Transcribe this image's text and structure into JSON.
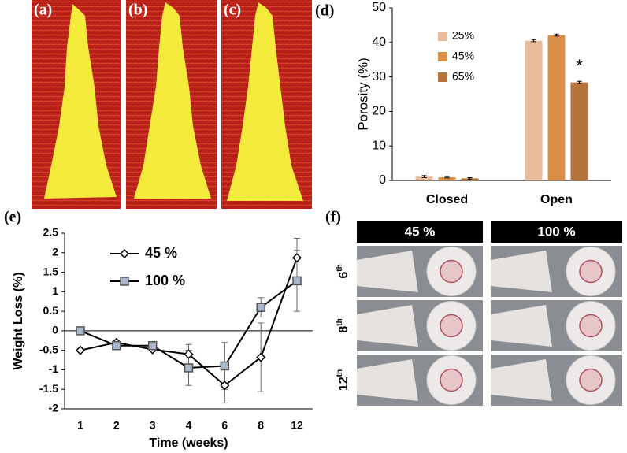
{
  "image_panels": {
    "labels": [
      "(a)",
      "(b)",
      "(c)"
    ]
  },
  "chart_data": [
    {
      "type": "bar",
      "panel_label": "(d)",
      "ylabel": "Porosity (%)",
      "categories": [
        "Closed",
        "Open"
      ],
      "series": [
        {
          "name": "25%",
          "color": "#e9bd9c",
          "values": [
            1.1,
            40.5
          ],
          "errors": [
            0.3,
            0.3
          ]
        },
        {
          "name": "45%",
          "color": "#d98f48",
          "values": [
            0.9,
            42.1
          ],
          "errors": [
            0.2,
            0.3
          ]
        },
        {
          "name": "65%",
          "color": "#b5743c",
          "values": [
            0.6,
            28.4
          ],
          "errors": [
            0.2,
            0.3
          ]
        }
      ],
      "annotation": "*",
      "ylim": [
        0,
        50
      ],
      "yticks": [
        0,
        10,
        20,
        30,
        40,
        50
      ],
      "legend": "upper-center"
    },
    {
      "type": "line",
      "panel_label": "(e)",
      "ylabel": "Weight Loss (%)",
      "xlabel": "Time (weeks)",
      "categories": [
        "1",
        "2",
        "3",
        "4",
        "6",
        "8",
        "12"
      ],
      "series": [
        {
          "name": "45 %",
          "color": "#000000",
          "marker": "diamond",
          "marker_color": "#ffffff",
          "values": [
            -0.5,
            -0.3,
            -0.48,
            -0.6,
            -1.4,
            -0.68,
            1.87
          ],
          "errors": [
            0,
            0,
            0,
            0.25,
            0.45,
            0.88,
            0.5
          ]
        },
        {
          "name": "100 %",
          "color": "#000000",
          "marker": "square",
          "marker_color": "#aab6ca",
          "values": [
            0,
            -0.38,
            -0.38,
            -0.95,
            -0.9,
            0.6,
            1.28
          ],
          "errors": [
            0,
            0,
            0,
            0.45,
            0.6,
            0.25,
            0.78
          ]
        }
      ],
      "ylim": [
        -2,
        2.5
      ],
      "yticks": [
        -2,
        -1.5,
        -1,
        -0.5,
        0,
        0.5,
        1,
        1.5,
        2,
        2.5
      ],
      "zero_line": true,
      "legend": "upper-left"
    }
  ],
  "photo_panel": {
    "label": "(f)",
    "columns": [
      "45 %",
      "100 %"
    ],
    "rows": [
      {
        "number": "6",
        "suffix": "th"
      },
      {
        "number": "8",
        "suffix": "th"
      },
      {
        "number": "12",
        "suffix": "th"
      }
    ]
  }
}
